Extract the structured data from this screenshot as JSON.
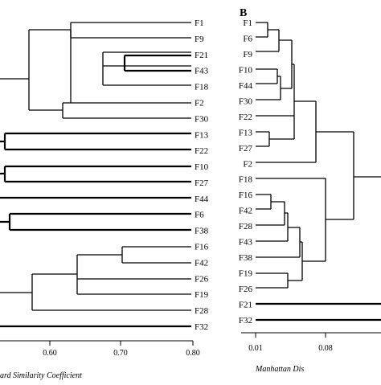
{
  "figure": {
    "panel_a": {
      "axis_title": "ard Similarity Coefficient",
      "ticks": [
        "0.60",
        "0.70",
        "0.80"
      ],
      "leaves": [
        "F1",
        "F9",
        "F21",
        "F43",
        "F18",
        "F2",
        "F30",
        "F13",
        "F22",
        "F10",
        "F27",
        "F44",
        "F6",
        "F38",
        "F16",
        "F42",
        "F26",
        "F19",
        "F28",
        "F32"
      ]
    },
    "panel_b": {
      "label": "B",
      "axis_title": "Manhattan Dis",
      "ticks": [
        "0.01",
        "0.08"
      ],
      "leaves": [
        "F1",
        "F6",
        "F9",
        "F10",
        "F44",
        "F30",
        "F22",
        "F13",
        "F27",
        "F2",
        "F18",
        "F16",
        "F42",
        "F28",
        "F43",
        "F38",
        "F19",
        "F26",
        "F21",
        "F32"
      ]
    }
  }
}
